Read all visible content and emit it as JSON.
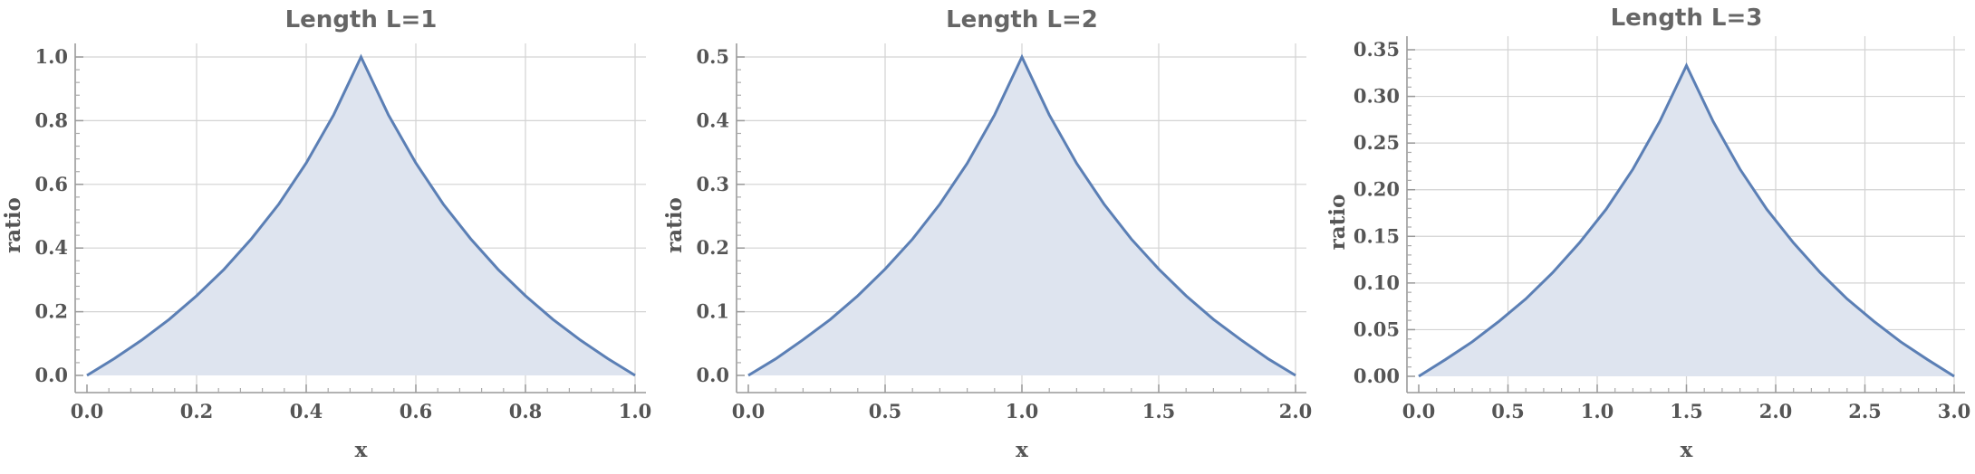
{
  "chart_data": [
    {
      "type": "area",
      "title": "Length L=1",
      "xlabel": "x",
      "ylabel": "ratio",
      "xlim": [
        0,
        1
      ],
      "ylim": [
        0,
        1
      ],
      "xticks": [
        0,
        0.2,
        0.4,
        0.6,
        0.8,
        1
      ],
      "xtick_labels": [
        "0.0",
        "0.2",
        "0.4",
        "0.6",
        "0.8",
        "1.0"
      ],
      "yticks": [
        0,
        0.2,
        0.4,
        0.6,
        0.8,
        1
      ],
      "ytick_labels": [
        "0.0",
        "0.2",
        "0.4",
        "0.6",
        "0.8",
        "1.0"
      ],
      "grid": true,
      "color": "#5b7fb5",
      "fill_color": "#dee4ef",
      "x": [
        0,
        0.05,
        0.1,
        0.15,
        0.2,
        0.25,
        0.3,
        0.35,
        0.4,
        0.45,
        0.5,
        0.55,
        0.6,
        0.65,
        0.7,
        0.75,
        0.8,
        0.85,
        0.9,
        0.95,
        1
      ],
      "y": [
        0,
        0.053,
        0.111,
        0.176,
        0.25,
        0.333,
        0.429,
        0.538,
        0.667,
        0.818,
        1,
        0.818,
        0.667,
        0.538,
        0.429,
        0.333,
        0.25,
        0.176,
        0.111,
        0.053,
        0
      ]
    },
    {
      "type": "area",
      "title": "Length L=2",
      "xlabel": "x",
      "ylabel": "ratio",
      "xlim": [
        0,
        2
      ],
      "ylim": [
        0,
        0.5
      ],
      "xticks": [
        0,
        0.5,
        1,
        1.5,
        2
      ],
      "xtick_labels": [
        "0.0",
        "0.5",
        "1.0",
        "1.5",
        "2.0"
      ],
      "yticks": [
        0,
        0.1,
        0.2,
        0.3,
        0.4,
        0.5
      ],
      "ytick_labels": [
        "0.0",
        "0.1",
        "0.2",
        "0.3",
        "0.4",
        "0.5"
      ],
      "grid": true,
      "color": "#5b7fb5",
      "fill_color": "#dee4ef",
      "x": [
        0,
        0.1,
        0.2,
        0.3,
        0.4,
        0.5,
        0.6,
        0.7,
        0.8,
        0.9,
        1,
        1.1,
        1.2,
        1.3,
        1.4,
        1.5,
        1.6,
        1.7,
        1.8,
        1.9,
        2
      ],
      "y": [
        0,
        0.026,
        0.056,
        0.088,
        0.125,
        0.167,
        0.214,
        0.269,
        0.333,
        0.409,
        0.5,
        0.409,
        0.333,
        0.269,
        0.214,
        0.167,
        0.125,
        0.088,
        0.056,
        0.026,
        0
      ]
    },
    {
      "type": "area",
      "title": "Length L=3",
      "xlabel": "x",
      "ylabel": "ratio",
      "xlim": [
        0,
        3
      ],
      "ylim": [
        0,
        0.35
      ],
      "xticks": [
        0,
        0.5,
        1,
        1.5,
        2,
        2.5,
        3
      ],
      "xtick_labels": [
        "0.0",
        "0.5",
        "1.0",
        "1.5",
        "2.0",
        "2.5",
        "3.0"
      ],
      "yticks": [
        0,
        0.05,
        0.1,
        0.15,
        0.2,
        0.25,
        0.3,
        0.35
      ],
      "ytick_labels": [
        "0.00",
        "0.05",
        "0.10",
        "0.15",
        "0.20",
        "0.25",
        "0.30",
        "0.35"
      ],
      "grid": true,
      "color": "#5b7fb5",
      "fill_color": "#dee4ef",
      "x": [
        0,
        0.15,
        0.3,
        0.45,
        0.6,
        0.75,
        0.9,
        1.05,
        1.2,
        1.35,
        1.5,
        1.65,
        1.8,
        1.95,
        2.1,
        2.25,
        2.4,
        2.55,
        2.7,
        2.85,
        3
      ],
      "y": [
        0,
        0.018,
        0.037,
        0.059,
        0.083,
        0.111,
        0.143,
        0.179,
        0.222,
        0.273,
        0.333,
        0.273,
        0.222,
        0.179,
        0.143,
        0.111,
        0.083,
        0.059,
        0.037,
        0.018,
        0
      ]
    }
  ]
}
